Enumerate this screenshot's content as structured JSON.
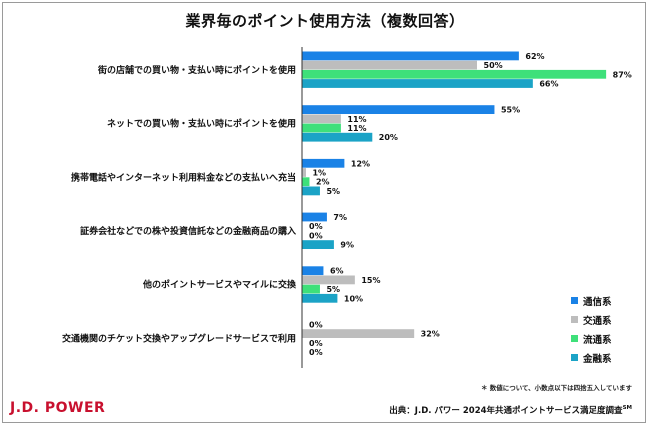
{
  "chart_data": {
    "type": "bar",
    "orientation": "horizontal",
    "title": "業界毎のポイント使用方法（複数回答）",
    "categories": [
      "街の店舗での買い物・支払い時にポイントを使用",
      "ネットでの買い物・支払い時にポイントを使用",
      "携帯電話やインターネット利用料金などの支払いへ充当",
      "証券会社などでの株や投資信託などの金融商品の購入",
      "他のポイントサービスやマイルに交換",
      "交通機関のチケット交換やアップグレードサービスで利用"
    ],
    "series": [
      {
        "name": "通信系",
        "color": "#1a82e6",
        "values": [
          62,
          55,
          12,
          7,
          6,
          0
        ]
      },
      {
        "name": "交通系",
        "color": "#bdbdbd",
        "values": [
          50,
          11,
          1,
          0,
          15,
          32
        ]
      },
      {
        "name": "流通系",
        "color": "#3ee07a",
        "values": [
          87,
          11,
          2,
          0,
          5,
          0
        ]
      },
      {
        "name": "金融系",
        "color": "#1ba3c6",
        "values": [
          66,
          20,
          5,
          9,
          10,
          0
        ]
      }
    ],
    "value_suffix": "%",
    "xlim": [
      0,
      100
    ],
    "grid": false,
    "legend": "bottom-right"
  },
  "footnote": "＊ 数値について、小数点以下は四捨五入しています",
  "logo": "J.D. POWER",
  "source": {
    "text": "出典：J.D. パワー 2024年共通ポイントサービス満足度調査",
    "mark": "SM"
  }
}
